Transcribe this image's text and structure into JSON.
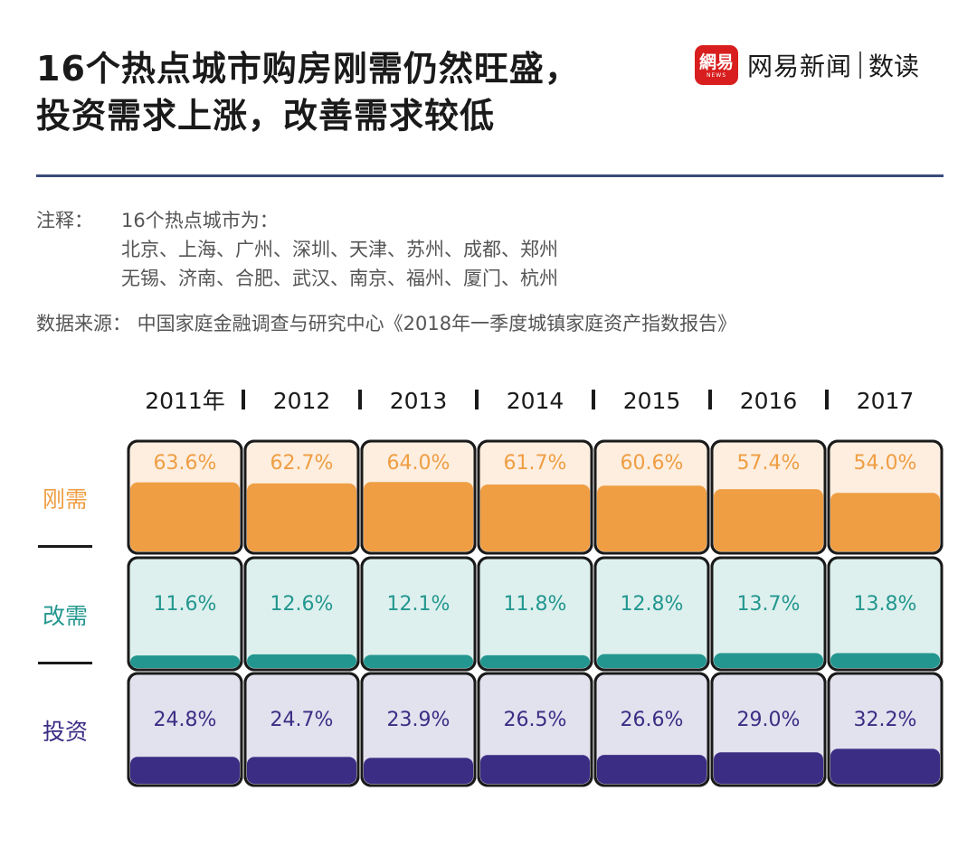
{
  "title_lines": [
    "16个热点城市购房刚需仍然旺盛，",
    "投资需求上涨，改善需求较低"
  ],
  "brand": {
    "logo_text": "網易",
    "logo_sub": "NEWS",
    "name": "网易新闻",
    "sub": "数读",
    "icon": "netease-news-logo-icon",
    "color": "#d81e1e"
  },
  "note": {
    "label": "注释：",
    "lines": [
      "16个热点城市为：",
      "北京、上海、广州、深圳、天津、苏州、成都、郑州",
      "无锡、济南、合肥、武汉、南京、福州、厦门、杭州"
    ]
  },
  "source": "数据来源： 中国家庭金融调查与研究中心《2018年一季度城镇家庭资产指数报告》",
  "chart_data": {
    "type": "table",
    "categories": [
      "2011年",
      "2012",
      "2013",
      "2014",
      "2015",
      "2016",
      "2017"
    ],
    "series": [
      {
        "name": "刚需",
        "values": [
          63.6,
          62.7,
          64.0,
          61.7,
          60.6,
          57.4,
          54.0
        ],
        "labels": [
          "63.6%",
          "62.7%",
          "64.0%",
          "61.7%",
          "60.6%",
          "57.4%",
          "54.0%"
        ],
        "color": "#ef9e43",
        "light": "#fdeee0",
        "text": "#ef9e43"
      },
      {
        "name": "改需",
        "values": [
          11.6,
          12.6,
          12.1,
          11.8,
          12.8,
          13.7,
          13.8
        ],
        "labels": [
          "11.6%",
          "12.6%",
          "12.1%",
          "11.8%",
          "12.8%",
          "13.7%",
          "13.8%"
        ],
        "color": "#23978f",
        "light": "#ddf0ee",
        "text": "#23978f"
      },
      {
        "name": "投资",
        "values": [
          24.8,
          24.7,
          23.9,
          26.5,
          26.6,
          29.0,
          32.2
        ],
        "labels": [
          "24.8%",
          "24.7%",
          "23.9%",
          "26.5%",
          "26.6%",
          "29.0%",
          "32.2%"
        ],
        "color": "#3b2d84",
        "light": "#e2e1ee",
        "text": "#3b2d84"
      }
    ],
    "colors": {
      "border": "#1a1a1a",
      "separator": "#1a1a1a"
    }
  }
}
